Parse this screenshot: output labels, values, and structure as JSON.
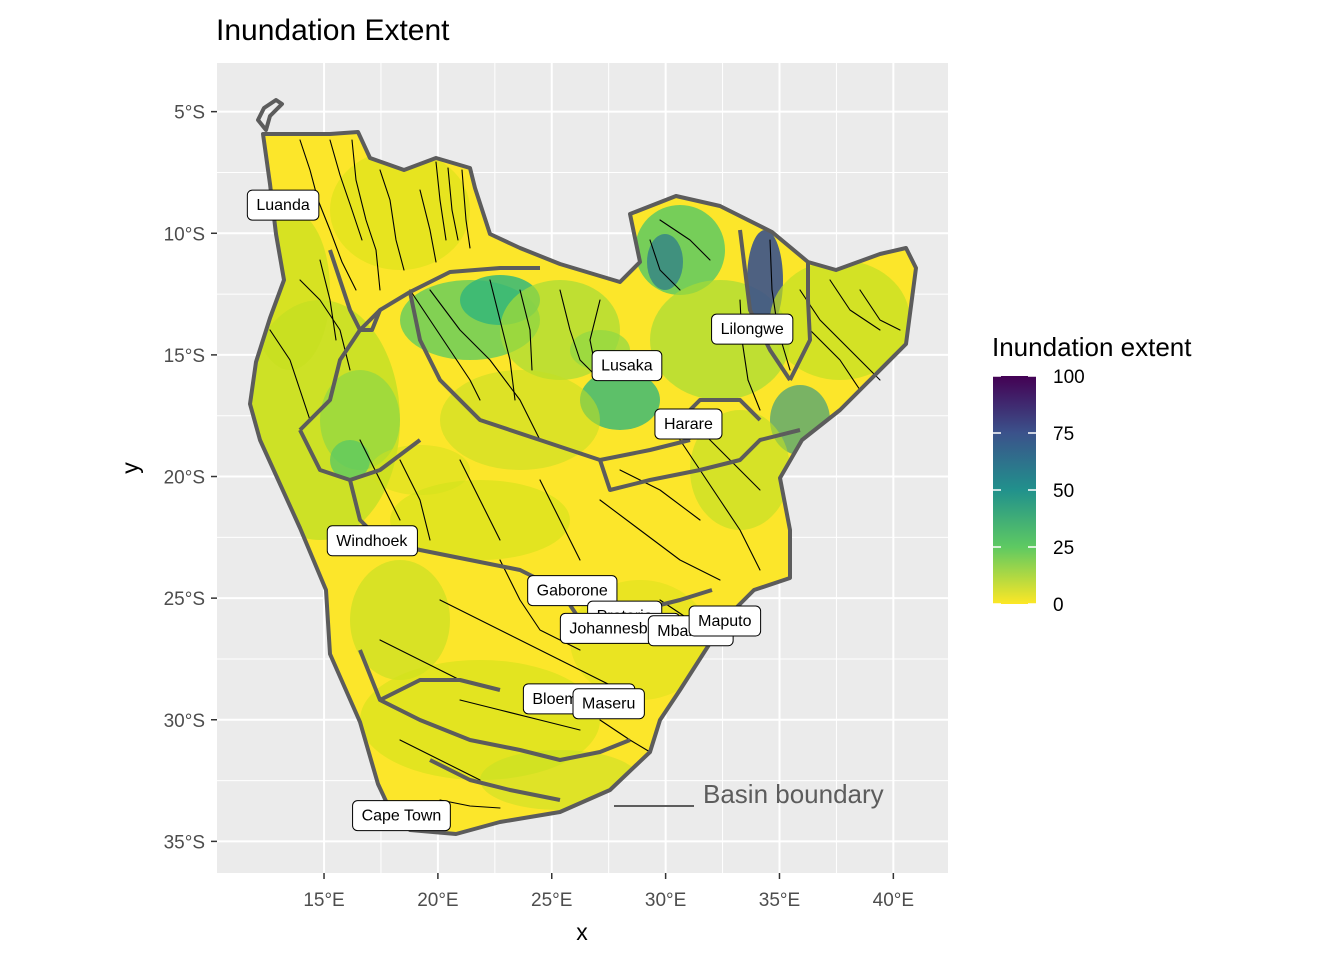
{
  "title": "Inundation Extent",
  "axes": {
    "x_title": "x",
    "y_title": "y",
    "x_ticks": [
      {
        "value": 15,
        "label": "15°E"
      },
      {
        "value": 20,
        "label": "20°E"
      },
      {
        "value": 25,
        "label": "25°E"
      },
      {
        "value": 30,
        "label": "30°E"
      },
      {
        "value": 35,
        "label": "35°E"
      },
      {
        "value": 40,
        "label": "40°E"
      }
    ],
    "y_ticks": [
      {
        "value": -5,
        "label": "5°S"
      },
      {
        "value": -10,
        "label": "10°S"
      },
      {
        "value": -15,
        "label": "15°S"
      },
      {
        "value": -20,
        "label": "20°S"
      },
      {
        "value": -25,
        "label": "25°S"
      },
      {
        "value": -30,
        "label": "30°S"
      },
      {
        "value": -35,
        "label": "35°S"
      }
    ],
    "lon_range": [
      10.3,
      42.4
    ],
    "lat_range": [
      -36.3,
      -3.0
    ]
  },
  "cities": [
    {
      "name": "Luanda",
      "lon": 13.2,
      "lat": -8.8
    },
    {
      "name": "Lilongwe",
      "lon": 33.8,
      "lat": -13.9
    },
    {
      "name": "Lusaka",
      "lon": 28.3,
      "lat": -15.4
    },
    {
      "name": "Harare",
      "lon": 31.0,
      "lat": -17.8
    },
    {
      "name": "Windhoek",
      "lon": 17.1,
      "lat": -22.6
    },
    {
      "name": "Gaborone",
      "lon": 25.9,
      "lat": -24.65
    },
    {
      "name": "Pretoria",
      "lon": 28.2,
      "lat": -25.7
    },
    {
      "name": "Johannesburg",
      "lon": 28.0,
      "lat": -26.2
    },
    {
      "name": "Mbabane",
      "lon": 31.1,
      "lat": -26.3
    },
    {
      "name": "Maputo",
      "lon": 32.6,
      "lat": -25.9
    },
    {
      "name": "Bloemfontein",
      "lon": 26.2,
      "lat": -29.1
    },
    {
      "name": "Maseru",
      "lon": 27.5,
      "lat": -29.3
    },
    {
      "name": "Cape Town",
      "lon": 18.4,
      "lat": -33.9
    }
  ],
  "legend": {
    "title": "Inundation extent",
    "ticks": [
      100,
      75,
      50,
      25,
      0
    ],
    "colors": [
      "#440154",
      "#3b528b",
      "#21918c",
      "#5ec962",
      "#fde725"
    ]
  },
  "annotation": {
    "text": "Basin boundary"
  },
  "colors": {
    "panel_bg": "#ebebeb",
    "grid": "#ffffff",
    "boundary": "#5c5c5c",
    "river": "#000000"
  }
}
